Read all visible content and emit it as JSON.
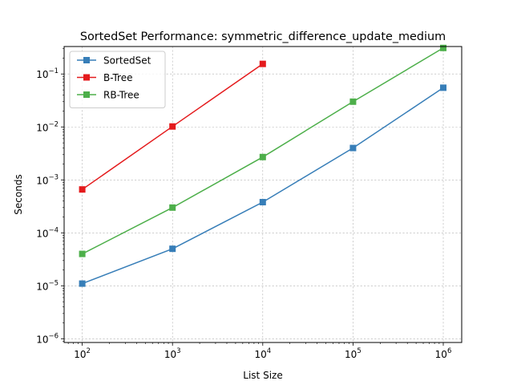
{
  "chart_data": {
    "type": "line",
    "title": "SortedSet Performance: symmetric_difference_update_medium",
    "xlabel": "List Size",
    "ylabel": "Seconds",
    "xscale": "log",
    "yscale": "log",
    "xlim": [
      63,
      1600000
    ],
    "ylim": [
      8.5e-07,
      0.33
    ],
    "grid": true,
    "legend": "top-left",
    "x_ticks": [
      {
        "value": 100,
        "base": "10",
        "exp": "2"
      },
      {
        "value": 1000,
        "base": "10",
        "exp": "3"
      },
      {
        "value": 10000,
        "base": "10",
        "exp": "4"
      },
      {
        "value": 100000,
        "base": "10",
        "exp": "5"
      },
      {
        "value": 1000000,
        "base": "10",
        "exp": "6"
      }
    ],
    "y_ticks": [
      {
        "value": 1e-06,
        "base": "10",
        "exp": "−6"
      },
      {
        "value": 1e-05,
        "base": "10",
        "exp": "−5"
      },
      {
        "value": 0.0001,
        "base": "10",
        "exp": "−4"
      },
      {
        "value": 0.001,
        "base": "10",
        "exp": "−3"
      },
      {
        "value": 0.01,
        "base": "10",
        "exp": "−2"
      },
      {
        "value": 0.1,
        "base": "10",
        "exp": "−1"
      }
    ],
    "series": [
      {
        "name": "SortedSet",
        "color": "#377eb8",
        "x": [
          100,
          1000,
          10000,
          100000,
          1000000
        ],
        "y": [
          1.1e-05,
          5e-05,
          0.00038,
          0.004,
          0.055
        ]
      },
      {
        "name": "B-Tree",
        "color": "#e41a1c",
        "x": [
          100,
          1000,
          10000
        ],
        "y": [
          0.00066,
          0.0102,
          0.155
        ]
      },
      {
        "name": "RB-Tree",
        "color": "#4daf4a",
        "x": [
          100,
          1000,
          10000,
          100000,
          1000000
        ],
        "y": [
          4e-05,
          0.0003,
          0.0027,
          0.03,
          0.31
        ]
      }
    ]
  }
}
